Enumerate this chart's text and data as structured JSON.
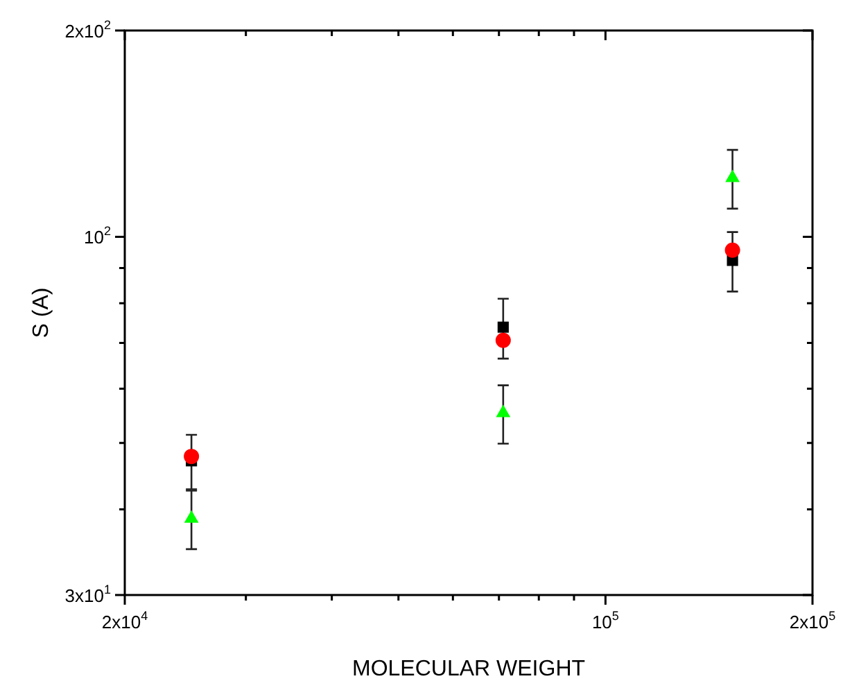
{
  "chart_data": {
    "type": "scatter",
    "xlabel": "MOLECULAR WEIGHT",
    "ylabel": "S (A)",
    "log": "xy",
    "grid": false,
    "legend": false,
    "x": [
      25000,
      71000,
      153000
    ],
    "xlim": [
      20000,
      200000
    ],
    "xticks": [
      {
        "value": 20000,
        "label": "2x10$^{4}$"
      },
      {
        "value": 30000,
        "label": null
      },
      {
        "value": 40000,
        "label": null
      },
      {
        "value": 50000,
        "label": null
      },
      {
        "value": 60000,
        "label": null
      },
      {
        "value": 70000,
        "label": null
      },
      {
        "value": 80000,
        "label": null
      },
      {
        "value": 90000,
        "label": null
      },
      {
        "value": 100000,
        "label": "10$^{5}$"
      },
      {
        "value": 200000,
        "label": "2x10$^{5}$"
      }
    ],
    "ylim": [
      30,
      200
    ],
    "yticks": [
      {
        "value": 30,
        "label": "3x10$^{1}$"
      },
      {
        "value": 40,
        "label": null
      },
      {
        "value": 50,
        "label": null
      },
      {
        "value": 60,
        "label": null
      },
      {
        "value": 70,
        "label": null
      },
      {
        "value": 80,
        "label": null
      },
      {
        "value": 90,
        "label": null
      },
      {
        "value": 100,
        "label": "10$^{2}$"
      },
      {
        "value": 200,
        "label": "2x10$^{2}$"
      }
    ],
    "series": [
      {
        "color": "#000000",
        "marker": "square",
        "values": [
          47.1,
          73.8,
          92.4
        ],
        "errors": [
          4.3,
          7.4,
          9.2
        ]
      },
      {
        "color": "#ff0000",
        "marker": "circle",
        "values": [
          47.8,
          70.6,
          95.6
        ]
      },
      {
        "color": "#00ff00",
        "marker": "triangle",
        "values": [
          38.8,
          55.3,
          121.9
        ],
        "errors": [
          3.8,
          5.4,
          12
        ]
      }
    ]
  }
}
